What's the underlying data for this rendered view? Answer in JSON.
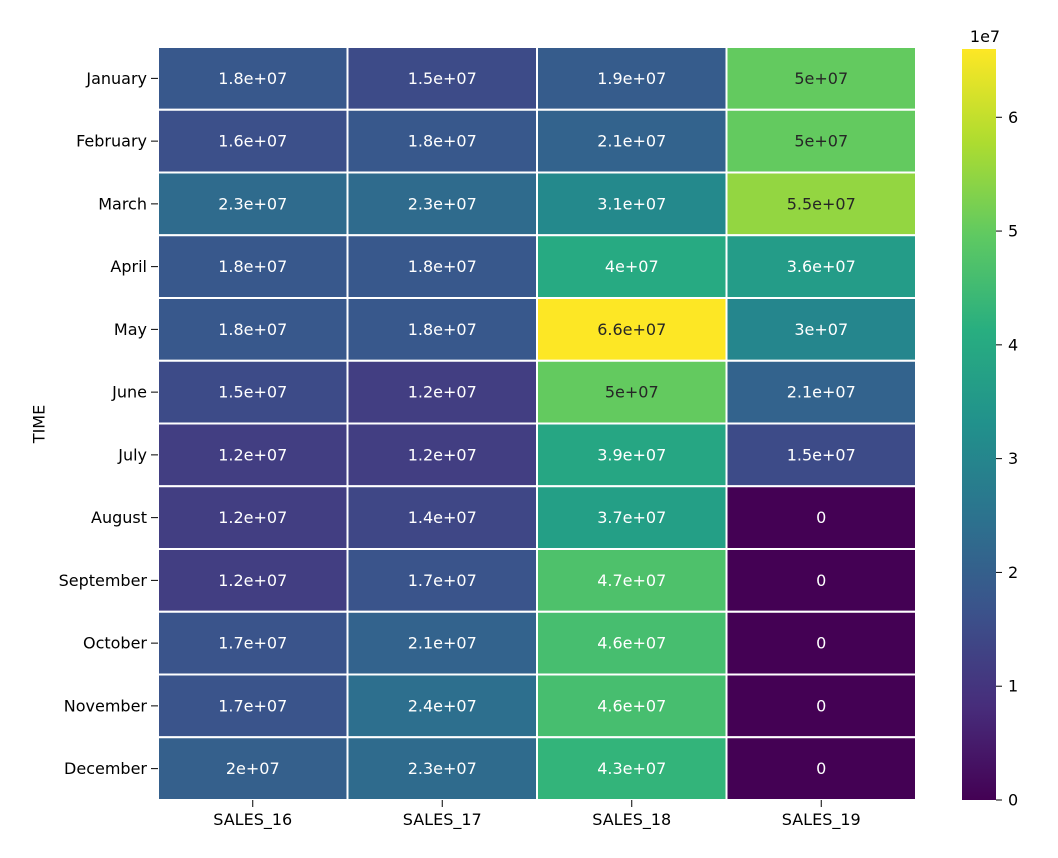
{
  "chart_data": {
    "type": "heatmap",
    "title": "",
    "xlabel": "",
    "ylabel": "TIME",
    "columns": [
      "SALES_16",
      "SALES_17",
      "SALES_18",
      "SALES_19"
    ],
    "rows": [
      "January",
      "February",
      "March",
      "April",
      "May",
      "June",
      "July",
      "August",
      "September",
      "October",
      "November",
      "December"
    ],
    "values": [
      [
        18000000,
        15000000,
        19000000,
        50000000
      ],
      [
        16000000,
        18000000,
        21000000,
        50000000
      ],
      [
        23000000,
        23000000,
        31000000,
        55000000
      ],
      [
        18000000,
        18000000,
        40000000,
        36000000
      ],
      [
        18000000,
        18000000,
        66000000,
        30000000
      ],
      [
        15000000,
        12000000,
        50000000,
        21000000
      ],
      [
        12000000,
        12000000,
        39000000,
        15000000
      ],
      [
        12000000,
        14000000,
        37000000,
        0
      ],
      [
        12000000,
        17000000,
        47000000,
        0
      ],
      [
        17000000,
        21000000,
        46000000,
        0
      ],
      [
        17000000,
        24000000,
        46000000,
        0
      ],
      [
        20000000,
        23000000,
        43000000,
        0
      ]
    ],
    "annotations": [
      [
        "1.8e+07",
        "1.5e+07",
        "1.9e+07",
        "5e+07"
      ],
      [
        "1.6e+07",
        "1.8e+07",
        "2.1e+07",
        "5e+07"
      ],
      [
        "2.3e+07",
        "2.3e+07",
        "3.1e+07",
        "5.5e+07"
      ],
      [
        "1.8e+07",
        "1.8e+07",
        "4e+07",
        "3.6e+07"
      ],
      [
        "1.8e+07",
        "1.8e+07",
        "6.6e+07",
        "3e+07"
      ],
      [
        "1.5e+07",
        "1.2e+07",
        "5e+07",
        "2.1e+07"
      ],
      [
        "1.2e+07",
        "1.2e+07",
        "3.9e+07",
        "1.5e+07"
      ],
      [
        "1.2e+07",
        "1.4e+07",
        "3.7e+07",
        "0"
      ],
      [
        "1.2e+07",
        "1.7e+07",
        "4.7e+07",
        "0"
      ],
      [
        "1.7e+07",
        "2.1e+07",
        "4.6e+07",
        "0"
      ],
      [
        "1.7e+07",
        "2.4e+07",
        "4.6e+07",
        "0"
      ],
      [
        "2e+07",
        "2.3e+07",
        "4.3e+07",
        "0"
      ]
    ],
    "colormap": "viridis",
    "vmin": 0,
    "vmax": 66000000,
    "colorbar": {
      "ticks": [
        0,
        1,
        2,
        3,
        4,
        5,
        6
      ],
      "tick_labels": [
        "0",
        "1",
        "2",
        "3",
        "4",
        "5",
        "6"
      ],
      "offset_label": "1e7"
    },
    "grid": false,
    "cell_border_color": "#ffffff"
  }
}
